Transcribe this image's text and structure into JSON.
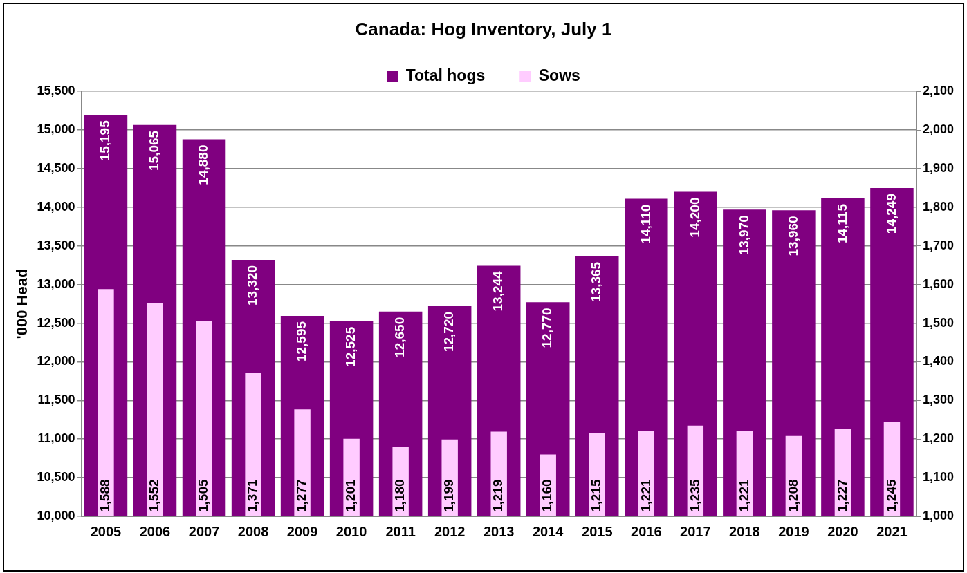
{
  "chart_data": {
    "type": "bar",
    "title": "Canada: Hog Inventory, July 1",
    "ylabel": "'000 Head",
    "categories": [
      "2005",
      "2006",
      "2007",
      "2008",
      "2009",
      "2010",
      "2011",
      "2012",
      "2013",
      "2014",
      "2015",
      "2016",
      "2017",
      "2018",
      "2019",
      "2020",
      "2021"
    ],
    "series": [
      {
        "name": "Total hogs",
        "color": "#800080",
        "values": [
          15195,
          15065,
          14880,
          13320,
          12595,
          12525,
          12650,
          12720,
          13244,
          12770,
          13365,
          14110,
          14200,
          13970,
          13960,
          14115,
          14249
        ],
        "value_labels": [
          "15,195",
          "15,065",
          "14,880",
          "13,320",
          "12,595",
          "12,525",
          "12,650",
          "12,720",
          "13,244",
          "12,770",
          "13,365",
          "14,110",
          "14,200",
          "13,970",
          "13,960",
          "14,115",
          "14,249"
        ]
      },
      {
        "name": "Sows",
        "color": "#ffccff",
        "axis": "y2",
        "values": [
          1588,
          1552,
          1505,
          1371,
          1277,
          1201,
          1180,
          1199,
          1219,
          1160,
          1215,
          1221,
          1235,
          1221,
          1208,
          1227,
          1245
        ],
        "value_labels": [
          "1,588",
          "1,552",
          "1,505",
          "1,371",
          "1,277",
          "1,201",
          "1,180",
          "1,199",
          "1,219",
          "1,160",
          "1,215",
          "1,221",
          "1,235",
          "1,221",
          "1,208",
          "1,227",
          "1,245"
        ]
      }
    ],
    "ylim": [
      10000,
      15500
    ],
    "yticks": [
      {
        "value": 10000,
        "label": "10,000"
      },
      {
        "value": 10500,
        "label": "10,500"
      },
      {
        "value": 11000,
        "label": "11,000"
      },
      {
        "value": 11500,
        "label": "11,500"
      },
      {
        "value": 12000,
        "label": "12,000"
      },
      {
        "value": 12500,
        "label": "12,500"
      },
      {
        "value": 13000,
        "label": "13,000"
      },
      {
        "value": 13500,
        "label": "13,500"
      },
      {
        "value": 14000,
        "label": "14,000"
      },
      {
        "value": 14500,
        "label": "14,500"
      },
      {
        "value": 15000,
        "label": "15,000"
      },
      {
        "value": 15500,
        "label": "15,500"
      }
    ],
    "y2lim": [
      1000,
      2100
    ],
    "y2ticks": [
      {
        "value": 1000,
        "label": "1,000"
      },
      {
        "value": 1100,
        "label": "1,100"
      },
      {
        "value": 1200,
        "label": "1,200"
      },
      {
        "value": 1300,
        "label": "1,300"
      },
      {
        "value": 1400,
        "label": "1,400"
      },
      {
        "value": 1500,
        "label": "1,500"
      },
      {
        "value": 1600,
        "label": "1,600"
      },
      {
        "value": 1700,
        "label": "1,700"
      },
      {
        "value": 1800,
        "label": "1,800"
      },
      {
        "value": 1900,
        "label": "1,900"
      },
      {
        "value": 2000,
        "label": "2,000"
      },
      {
        "value": 2100,
        "label": "2,100"
      }
    ],
    "grid": "y",
    "legend": "top"
  }
}
